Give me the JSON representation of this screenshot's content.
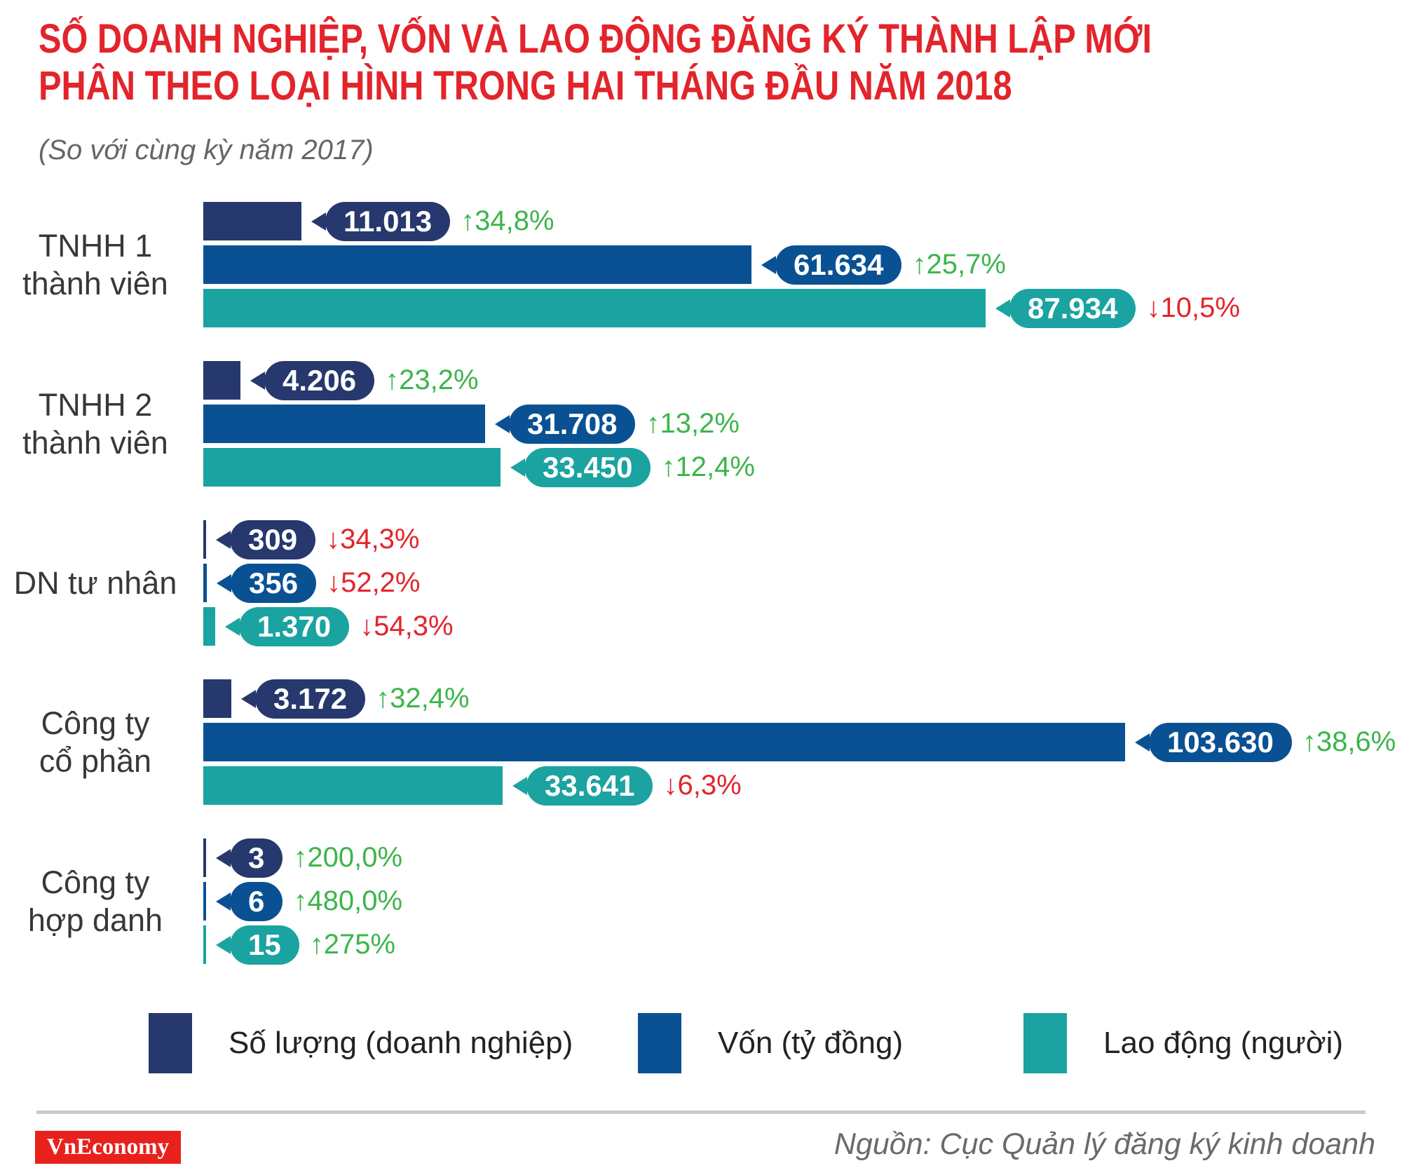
{
  "title": {
    "line1": "SỐ DOANH NGHIỆP, VỐN VÀ LAO ĐỘNG ĐĂNG KÝ THÀNH LẬP MỚI",
    "line2": "PHÂN THEO LOẠI HÌNH TRONG HAI THÁNG ĐẦU NĂM 2018",
    "subtitle": "(So với cùng kỳ năm 2017)"
  },
  "colors": {
    "title_red": "#e3242b",
    "navy": "#26386d",
    "blue": "#0a5194",
    "teal": "#1aa3a1",
    "up_green": "#3cb54a",
    "down_red": "#e3242b",
    "logo_red": "#e8211d"
  },
  "chart_data": {
    "type": "bar",
    "orientation": "horizontal",
    "xlim": [
      0,
      103630
    ],
    "grid": false,
    "legend_position": "bottom",
    "categories": [
      "TNHH 1 thành viên",
      "TNHH 2 thành viên",
      "DN tư nhân",
      "Công ty cổ phần",
      "Công ty hợp danh"
    ],
    "category_lines": [
      [
        "TNHH 1",
        "thành viên"
      ],
      [
        "TNHH 2",
        "thành viên"
      ],
      [
        "DN tư nhân"
      ],
      [
        "Công ty",
        "cổ phần"
      ],
      [
        "Công ty",
        "hợp danh"
      ]
    ],
    "series": [
      {
        "name": "Số lượng (doanh nghiệp)",
        "color": "#26386d",
        "values": [
          11013,
          4206,
          309,
          3172,
          3
        ],
        "value_labels": [
          "11.013",
          "4.206",
          "309",
          "3.172",
          "3"
        ],
        "change_labels": [
          "34,8%",
          "23,2%",
          "34,3%",
          "32,4%",
          "200,0%"
        ],
        "change_dirs": [
          "up",
          "up",
          "down",
          "up",
          "up"
        ]
      },
      {
        "name": "Vốn (tỷ đồng)",
        "color": "#0a5194",
        "values": [
          61634,
          31708,
          356,
          103630,
          6
        ],
        "value_labels": [
          "61.634",
          "31.708",
          "356",
          "103.630",
          "6"
        ],
        "change_labels": [
          "25,7%",
          "13,2%",
          "52,2%",
          "38,6%",
          "480,0%"
        ],
        "change_dirs": [
          "up",
          "up",
          "down",
          "up",
          "up"
        ]
      },
      {
        "name": "Lao động (người)",
        "color": "#1aa3a1",
        "values": [
          87934,
          33450,
          1370,
          33641,
          15
        ],
        "value_labels": [
          "87.934",
          "33.450",
          "1.370",
          "33.641",
          "15"
        ],
        "change_labels": [
          "10,5%",
          "12,4%",
          "54,3%",
          "6,3%",
          "275%"
        ],
        "change_dirs": [
          "down",
          "up",
          "down",
          "down",
          "up"
        ]
      }
    ]
  },
  "footer": {
    "logo_text": "VnEconomy",
    "source_text": "Nguồn: Cục Quản lý đăng ký kinh doanh"
  }
}
